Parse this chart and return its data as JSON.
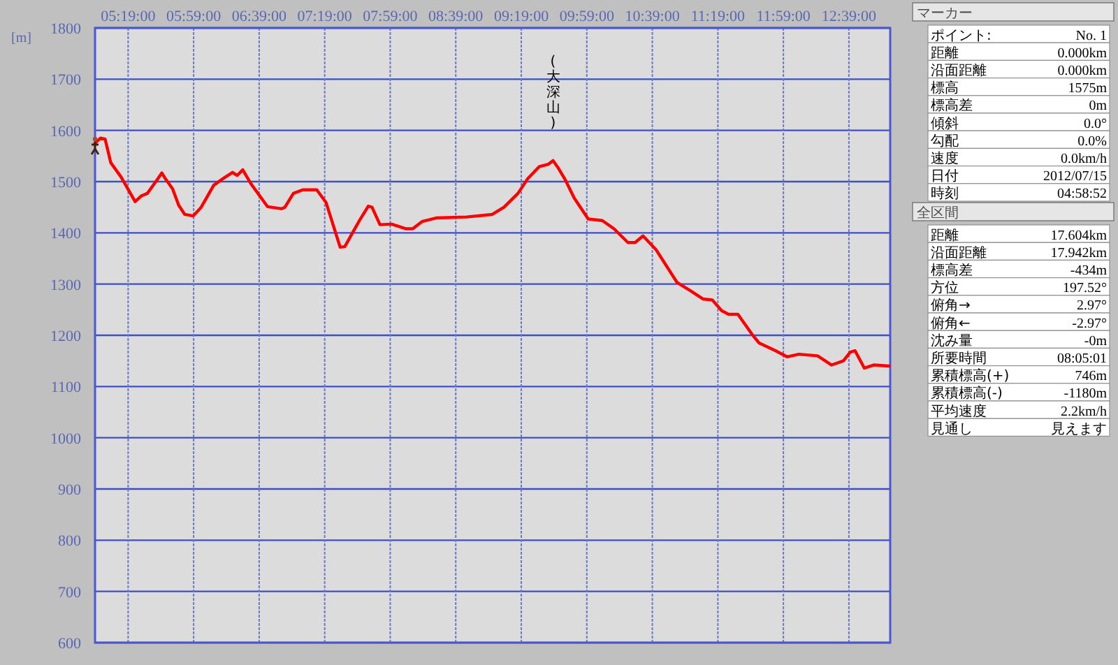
{
  "chart_data": [
    {
      "type": "line",
      "ylabel": "[m]",
      "grid": true,
      "marker": "none",
      "line_style": "solid",
      "x": [
        4.98,
        5.036,
        5.083,
        5.14,
        5.245,
        5.388,
        5.45,
        5.512,
        5.579,
        5.617,
        5.66,
        5.698,
        5.769,
        5.831,
        5.893,
        5.979,
        6.06,
        6.188,
        6.283,
        6.379,
        6.426,
        6.483,
        6.569,
        6.736,
        6.879,
        6.912,
        6.998,
        7.093,
        7.236,
        7.331,
        7.474,
        7.521,
        7.664,
        7.76,
        7.798,
        7.879,
        7.998,
        8.141,
        8.212,
        8.307,
        8.45,
        8.76,
        9.021,
        9.141,
        9.283,
        9.379,
        9.498,
        9.593,
        9.64,
        9.688,
        9.76,
        9.855,
        9.998,
        10.141,
        10.26,
        10.402,
        10.474,
        10.555,
        10.688,
        10.902,
        11.045,
        11.164,
        11.26,
        11.355,
        11.426,
        11.521,
        11.664,
        11.736,
        11.902,
        12.021,
        12.14,
        12.331,
        12.474,
        12.593,
        12.664,
        12.712,
        12.807,
        12.902,
        13.06
      ],
      "series": [
        {
          "color": "#ff0000",
          "values": [
            1575,
            1585,
            1583,
            1537,
            1509,
            1461,
            1472,
            1477,
            1495,
            1505,
            1517,
            1505,
            1486,
            1454,
            1436,
            1433,
            1450,
            1493,
            1506,
            1518,
            1512,
            1523,
            1495,
            1451,
            1447,
            1450,
            1477,
            1484,
            1484,
            1459,
            1372,
            1373,
            1422,
            1452,
            1450,
            1416,
            1417,
            1408,
            1408,
            1422,
            1429,
            1431,
            1436,
            1450,
            1477,
            1505,
            1529,
            1534,
            1541,
            1528,
            1505,
            1468,
            1427,
            1424,
            1408,
            1381,
            1381,
            1394,
            1367,
            1303,
            1286,
            1271,
            1269,
            1248,
            1241,
            1241,
            1202,
            1185,
            1170,
            1158,
            1163,
            1160,
            1142,
            1150,
            1167,
            1170,
            1136,
            1142,
            1140
          ]
        }
      ],
      "xlim": [
        4.98,
        13.07
      ],
      "ylim": [
        600,
        1800
      ],
      "xticks": [
        {
          "value": 5.3167,
          "label": "05:19:00"
        },
        {
          "value": 5.9833,
          "label": "05:59:00"
        },
        {
          "value": 6.65,
          "label": "06:39:00"
        },
        {
          "value": 7.3167,
          "label": "07:19:00"
        },
        {
          "value": 7.9833,
          "label": "07:59:00"
        },
        {
          "value": 8.65,
          "label": "08:39:00"
        },
        {
          "value": 9.3167,
          "label": "09:19:00"
        },
        {
          "value": 9.9833,
          "label": "09:59:00"
        },
        {
          "value": 10.65,
          "label": "10:39:00"
        },
        {
          "value": 11.3167,
          "label": "11:19:00"
        },
        {
          "value": 11.9833,
          "label": "11:59:00"
        },
        {
          "value": 12.65,
          "label": "12:39:00"
        }
      ],
      "yticks": [
        600,
        700,
        800,
        900,
        1000,
        1100,
        1200,
        1300,
        1400,
        1500,
        1600,
        1700,
        1800
      ],
      "annotations": [
        {
          "text": "(大深山)",
          "x": 9.64,
          "y": 1541
        }
      ]
    },
    {
      "type": "other",
      "title": "マーカー",
      "annotations": [
        "ポイント:",
        "No. 1",
        "距離",
        "0.000km",
        "沿面距離",
        "0.000km",
        "標高",
        "1575m",
        "標高差",
        "0m",
        "傾斜",
        "0.0°",
        "勾配",
        "0.0%",
        "速度",
        "0.0km/h",
        "日付",
        "2012/07/15",
        "時刻",
        "04:58:52"
      ]
    },
    {
      "type": "other",
      "title": "全区間",
      "annotations": [
        "距離",
        "17.604km",
        "沿面距離",
        "17.942km",
        "標高差",
        "-434m",
        "方位",
        "197.52°",
        "俯角→",
        "2.97°",
        "俯角←",
        "-2.97°",
        "沈み量",
        "-0m",
        "所要時間",
        "08:05:01",
        "累積標高(+)",
        "746m",
        "累積標高(-)",
        "-1180m",
        "平均速度",
        "2.2km/h",
        "見通し",
        "見えます"
      ]
    }
  ]
}
